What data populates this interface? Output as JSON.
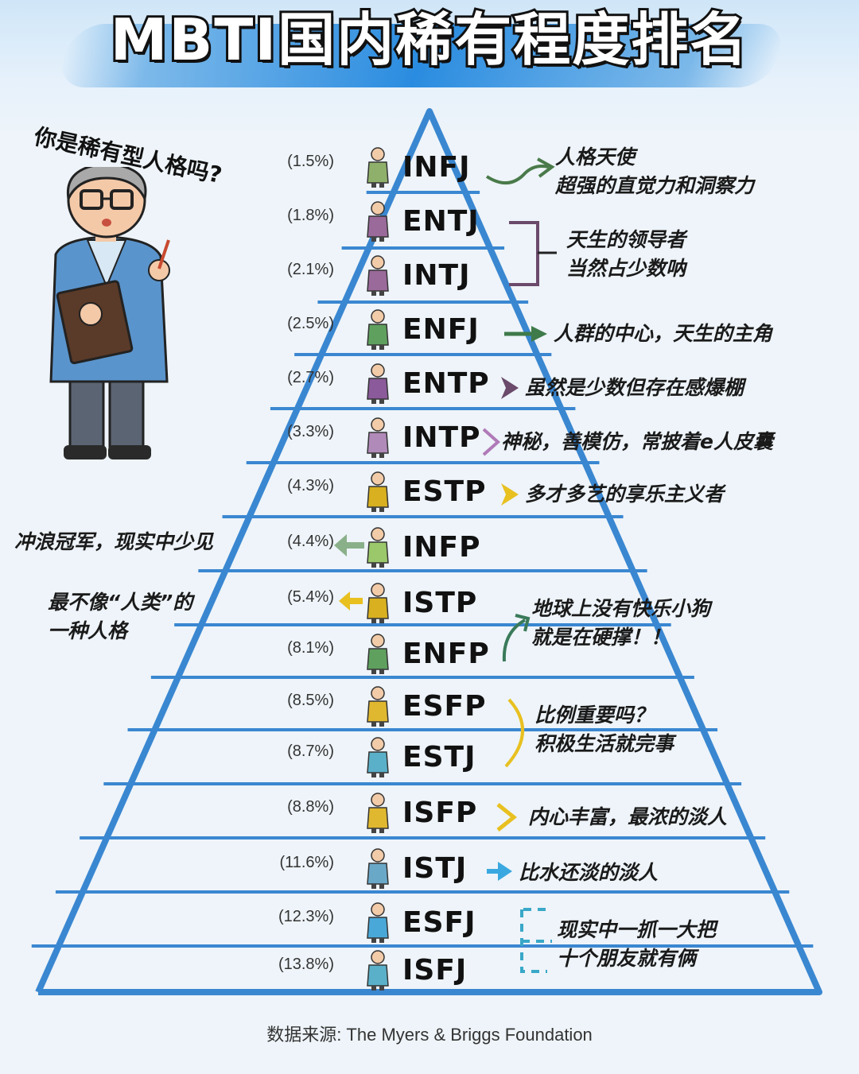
{
  "title": "MBTI国内稀有程度排名",
  "speech": "你是稀有型人格吗?",
  "source": "数据来源: The Myers & Briggs Foundation",
  "colors": {
    "pyramid": "#3a87d1",
    "accent_green": "#4a7a4a",
    "accent_purple": "#6b4a6b",
    "accent_yellow": "#e8c020",
    "accent_blue": "#3aa8e0"
  },
  "rows": [
    {
      "type": "INFJ",
      "pct": "(1.5%)",
      "icon": "sage-figure-icon",
      "fig": "#8fb06a"
    },
    {
      "type": "ENTJ",
      "pct": "(1.8%)",
      "icon": "commander-figure-icon",
      "fig": "#9a6a9a"
    },
    {
      "type": "INTJ",
      "pct": "(2.1%)",
      "icon": "architect-figure-icon",
      "fig": "#9a6a9a"
    },
    {
      "type": "ENFJ",
      "pct": "(2.5%)",
      "icon": "protagonist-figure-icon",
      "fig": "#5fa05f"
    },
    {
      "type": "ENTP",
      "pct": "(2.7%)",
      "icon": "debater-figure-icon",
      "fig": "#8a5a9a"
    },
    {
      "type": "INTP",
      "pct": "(3.3%)",
      "icon": "logician-figure-icon",
      "fig": "#b08ab8"
    },
    {
      "type": "ESTP",
      "pct": "(4.3%)",
      "icon": "entrepreneur-figure-icon",
      "fig": "#d8b020"
    },
    {
      "type": "INFP",
      "pct": "(4.4%)",
      "icon": "mediator-figure-icon",
      "fig": "#9ac86a"
    },
    {
      "type": "ISTP",
      "pct": "(5.4%)",
      "icon": "virtuoso-figure-icon",
      "fig": "#d8b020"
    },
    {
      "type": "ENFP",
      "pct": "(8.1%)",
      "icon": "campaigner-figure-icon",
      "fig": "#5fa05f"
    },
    {
      "type": "ESFP",
      "pct": "(8.5%)",
      "icon": "entertainer-figure-icon",
      "fig": "#e0b830"
    },
    {
      "type": "ESTJ",
      "pct": "(8.7%)",
      "icon": "executive-figure-icon",
      "fig": "#5ab0c8"
    },
    {
      "type": "ISFP",
      "pct": "(8.8%)",
      "icon": "adventurer-figure-icon",
      "fig": "#e0b830"
    },
    {
      "type": "ISTJ",
      "pct": "(11.6%)",
      "icon": "logistician-figure-icon",
      "fig": "#6aa8c8"
    },
    {
      "type": "ESFJ",
      "pct": "(12.3%)",
      "icon": "consul-figure-icon",
      "fig": "#4aa8d8"
    },
    {
      "type": "ISFJ",
      "pct": "(13.8%)",
      "icon": "defender-figure-icon",
      "fig": "#5ab0c8"
    }
  ],
  "notes": {
    "infj": [
      "人格天使",
      "超强的直觉力和洞察力"
    ],
    "entj_intj": [
      "天生的领导者",
      "当然占少数呐"
    ],
    "enfj": "人群的中心，天生的主角",
    "entp": "虽然是少数但存在感爆棚",
    "intp": "神秘，善模仿，常披着e人皮囊",
    "estp": "多才多艺的享乐主义者",
    "infp": "冲浪冠军，现实中少见",
    "istp": [
      "最不像“人类”的",
      "一种人格"
    ],
    "enfp": [
      "地球上没有快乐小狗",
      "就是在硬撑！！"
    ],
    "esfp_estj": [
      "比例重要吗？",
      "积极生活就完事"
    ],
    "isfp": "内心丰富，最浓的淡人",
    "istj": "比水还淡的淡人",
    "esfj_isfj": [
      "现实中一抓一大把",
      "十个朋友就有俩"
    ]
  }
}
